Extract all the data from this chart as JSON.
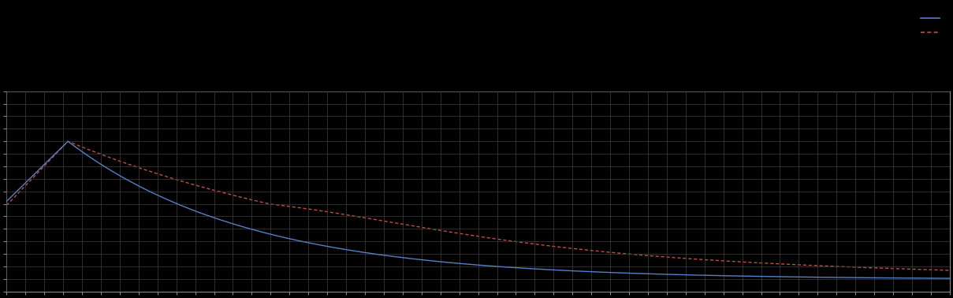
{
  "background_color": "#000000",
  "plot_bg_color": "#000000",
  "grid_color": "#404040",
  "line1_color": "#5580C8",
  "line2_color": "#C05040",
  "figsize": [
    12.09,
    3.78
  ],
  "dpi": 100,
  "xlim": [
    0,
    500
  ],
  "ylim": [
    0,
    500
  ],
  "x_peak": 30,
  "y_start": 250,
  "y_peak": 390,
  "minor_grid_divisions": 20,
  "major_grid_divisions": 5,
  "legend_line1_label": "",
  "legend_line2_label": ""
}
